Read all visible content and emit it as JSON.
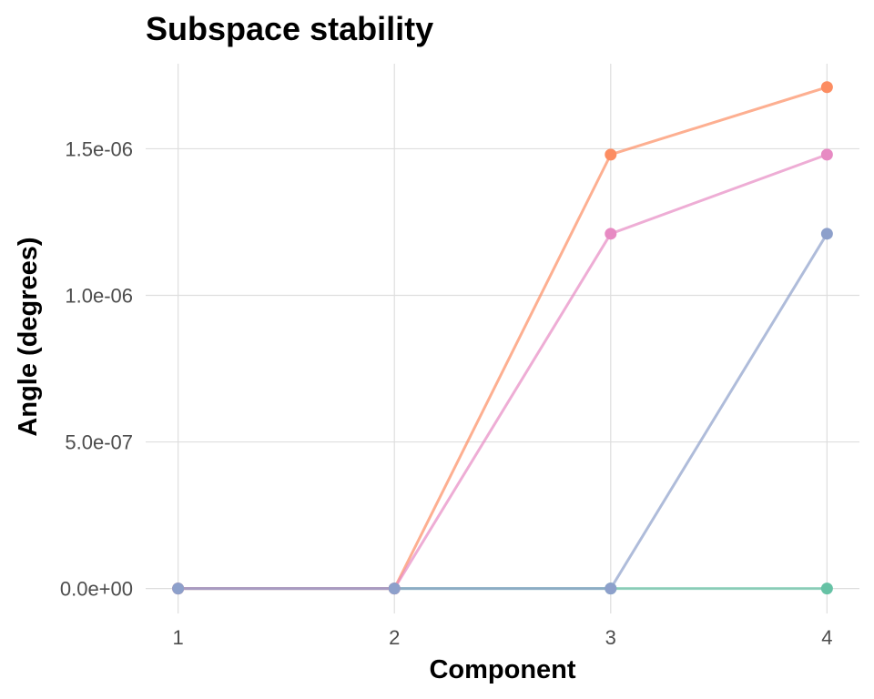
{
  "chart_data": {
    "type": "line",
    "title": "Subspace stability",
    "xlabel": "Component",
    "ylabel": "Angle (degrees)",
    "x": [
      1,
      2,
      3,
      4
    ],
    "x_tick_labels": [
      "1",
      "2",
      "3",
      "4"
    ],
    "y_ticks": [
      0,
      5e-07,
      1e-06,
      1.5e-06
    ],
    "y_tick_labels": [
      "0.0e+00",
      "5.0e-07",
      "1.0e-06",
      "1.5e-06"
    ],
    "xlim": [
      0.85,
      4.15
    ],
    "ylim": [
      -8.5e-08,
      1.79e-06
    ],
    "grid": true,
    "legend": "none",
    "series": [
      {
        "color": "#66c2a5",
        "values": [
          0,
          0,
          0,
          0
        ]
      },
      {
        "color": "#fc8d62",
        "values": [
          0,
          0,
          1.48e-06,
          1.71e-06
        ]
      },
      {
        "color": "#e78ac3",
        "values": [
          0,
          0,
          1.21e-06,
          1.48e-06
        ]
      },
      {
        "color": "#8da0cb",
        "values": [
          0,
          0,
          0,
          1.21e-06
        ]
      }
    ]
  }
}
